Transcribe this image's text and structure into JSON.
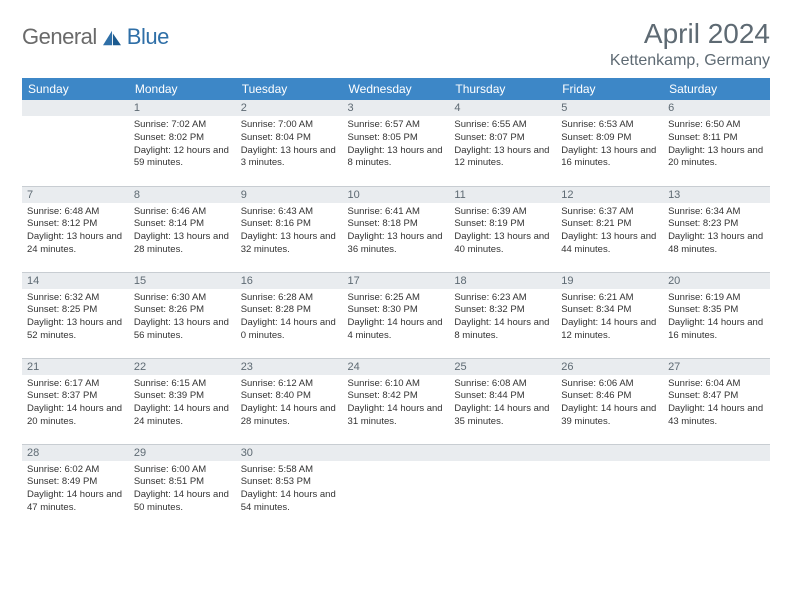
{
  "brand": {
    "part1": "General",
    "part2": "Blue"
  },
  "title": "April 2024",
  "location": "Kettenkamp, Germany",
  "colors": {
    "header_bg": "#3d87c7",
    "header_fg": "#ffffff",
    "daynum_bg": "#e9ecef",
    "text": "#5e6a73",
    "rule": "#c8cdd2"
  },
  "weekdays": [
    "Sunday",
    "Monday",
    "Tuesday",
    "Wednesday",
    "Thursday",
    "Friday",
    "Saturday"
  ],
  "weeks": [
    [
      null,
      {
        "n": "1",
        "sr": "7:02 AM",
        "ss": "8:02 PM",
        "dl": "12 hours and 59 minutes."
      },
      {
        "n": "2",
        "sr": "7:00 AM",
        "ss": "8:04 PM",
        "dl": "13 hours and 3 minutes."
      },
      {
        "n": "3",
        "sr": "6:57 AM",
        "ss": "8:05 PM",
        "dl": "13 hours and 8 minutes."
      },
      {
        "n": "4",
        "sr": "6:55 AM",
        "ss": "8:07 PM",
        "dl": "13 hours and 12 minutes."
      },
      {
        "n": "5",
        "sr": "6:53 AM",
        "ss": "8:09 PM",
        "dl": "13 hours and 16 minutes."
      },
      {
        "n": "6",
        "sr": "6:50 AM",
        "ss": "8:11 PM",
        "dl": "13 hours and 20 minutes."
      }
    ],
    [
      {
        "n": "7",
        "sr": "6:48 AM",
        "ss": "8:12 PM",
        "dl": "13 hours and 24 minutes."
      },
      {
        "n": "8",
        "sr": "6:46 AM",
        "ss": "8:14 PM",
        "dl": "13 hours and 28 minutes."
      },
      {
        "n": "9",
        "sr": "6:43 AM",
        "ss": "8:16 PM",
        "dl": "13 hours and 32 minutes."
      },
      {
        "n": "10",
        "sr": "6:41 AM",
        "ss": "8:18 PM",
        "dl": "13 hours and 36 minutes."
      },
      {
        "n": "11",
        "sr": "6:39 AM",
        "ss": "8:19 PM",
        "dl": "13 hours and 40 minutes."
      },
      {
        "n": "12",
        "sr": "6:37 AM",
        "ss": "8:21 PM",
        "dl": "13 hours and 44 minutes."
      },
      {
        "n": "13",
        "sr": "6:34 AM",
        "ss": "8:23 PM",
        "dl": "13 hours and 48 minutes."
      }
    ],
    [
      {
        "n": "14",
        "sr": "6:32 AM",
        "ss": "8:25 PM",
        "dl": "13 hours and 52 minutes."
      },
      {
        "n": "15",
        "sr": "6:30 AM",
        "ss": "8:26 PM",
        "dl": "13 hours and 56 minutes."
      },
      {
        "n": "16",
        "sr": "6:28 AM",
        "ss": "8:28 PM",
        "dl": "14 hours and 0 minutes."
      },
      {
        "n": "17",
        "sr": "6:25 AM",
        "ss": "8:30 PM",
        "dl": "14 hours and 4 minutes."
      },
      {
        "n": "18",
        "sr": "6:23 AM",
        "ss": "8:32 PM",
        "dl": "14 hours and 8 minutes."
      },
      {
        "n": "19",
        "sr": "6:21 AM",
        "ss": "8:34 PM",
        "dl": "14 hours and 12 minutes."
      },
      {
        "n": "20",
        "sr": "6:19 AM",
        "ss": "8:35 PM",
        "dl": "14 hours and 16 minutes."
      }
    ],
    [
      {
        "n": "21",
        "sr": "6:17 AM",
        "ss": "8:37 PM",
        "dl": "14 hours and 20 minutes."
      },
      {
        "n": "22",
        "sr": "6:15 AM",
        "ss": "8:39 PM",
        "dl": "14 hours and 24 minutes."
      },
      {
        "n": "23",
        "sr": "6:12 AM",
        "ss": "8:40 PM",
        "dl": "14 hours and 28 minutes."
      },
      {
        "n": "24",
        "sr": "6:10 AM",
        "ss": "8:42 PM",
        "dl": "14 hours and 31 minutes."
      },
      {
        "n": "25",
        "sr": "6:08 AM",
        "ss": "8:44 PM",
        "dl": "14 hours and 35 minutes."
      },
      {
        "n": "26",
        "sr": "6:06 AM",
        "ss": "8:46 PM",
        "dl": "14 hours and 39 minutes."
      },
      {
        "n": "27",
        "sr": "6:04 AM",
        "ss": "8:47 PM",
        "dl": "14 hours and 43 minutes."
      }
    ],
    [
      {
        "n": "28",
        "sr": "6:02 AM",
        "ss": "8:49 PM",
        "dl": "14 hours and 47 minutes."
      },
      {
        "n": "29",
        "sr": "6:00 AM",
        "ss": "8:51 PM",
        "dl": "14 hours and 50 minutes."
      },
      {
        "n": "30",
        "sr": "5:58 AM",
        "ss": "8:53 PM",
        "dl": "14 hours and 54 minutes."
      },
      null,
      null,
      null,
      null
    ]
  ],
  "labels": {
    "sunrise": "Sunrise: ",
    "sunset": "Sunset: ",
    "daylight": "Daylight: "
  }
}
